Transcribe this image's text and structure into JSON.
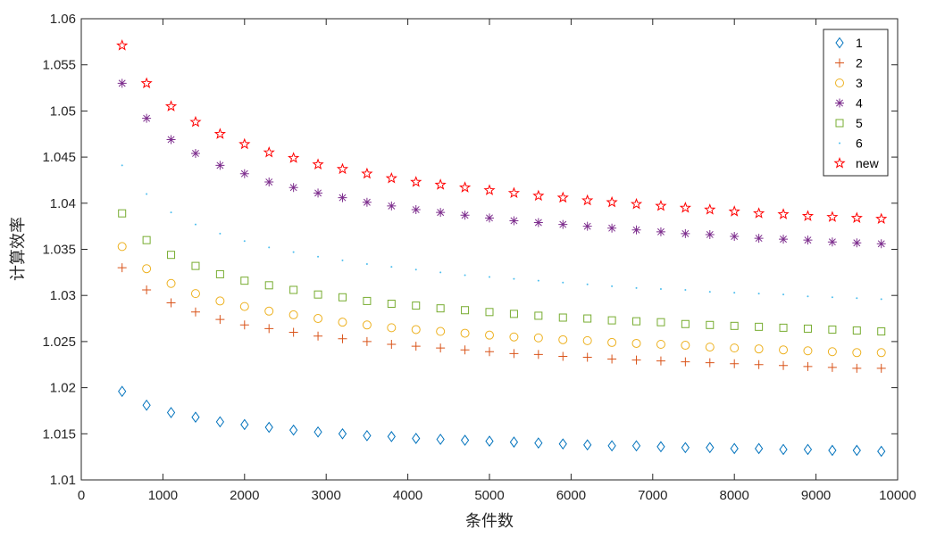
{
  "chart_data": {
    "type": "scatter",
    "title": "",
    "xlabel": "条件数",
    "ylabel": "计算效率",
    "xlim": [
      0,
      10000
    ],
    "ylim": [
      1.01,
      1.06
    ],
    "x_ticks": [
      "0",
      "1000",
      "2000",
      "3000",
      "4000",
      "5000",
      "6000",
      "7000",
      "8000",
      "9000",
      "10000"
    ],
    "y_ticks": [
      "1.01",
      "1.015",
      "1.02",
      "1.025",
      "1.03",
      "1.035",
      "1.04",
      "1.045",
      "1.05",
      "1.055",
      "1.06"
    ],
    "grid": false,
    "legend_position": "top-right",
    "x": [
      500,
      800,
      1100,
      1400,
      1700,
      2000,
      2300,
      2600,
      2900,
      3200,
      3500,
      3800,
      4100,
      4400,
      4700,
      5000,
      5300,
      5600,
      5900,
      6200,
      6500,
      6800,
      7100,
      7400,
      7700,
      8000,
      8300,
      8600,
      8900,
      9200,
      9500,
      9800
    ],
    "series": [
      {
        "name": "1",
        "marker": "diamond",
        "color": "#0072BD",
        "values": [
          1.0196,
          1.0181,
          1.0173,
          1.0168,
          1.0163,
          1.016,
          1.0157,
          1.0154,
          1.0152,
          1.015,
          1.0148,
          1.0147,
          1.0145,
          1.0144,
          1.0143,
          1.0142,
          1.0141,
          1.014,
          1.0139,
          1.0138,
          1.0137,
          1.0137,
          1.0136,
          1.0135,
          1.0135,
          1.0134,
          1.0134,
          1.0133,
          1.0133,
          1.0132,
          1.0132,
          1.0131
        ]
      },
      {
        "name": "2",
        "marker": "plus",
        "color": "#D95319",
        "values": [
          1.033,
          1.0306,
          1.0292,
          1.0282,
          1.0274,
          1.0268,
          1.0264,
          1.026,
          1.0256,
          1.0253,
          1.025,
          1.0247,
          1.0245,
          1.0243,
          1.0241,
          1.0239,
          1.0237,
          1.0236,
          1.0234,
          1.0233,
          1.0231,
          1.023,
          1.0229,
          1.0228,
          1.0227,
          1.0226,
          1.0225,
          1.0224,
          1.0223,
          1.0222,
          1.0221,
          1.0221
        ]
      },
      {
        "name": "3",
        "marker": "circle",
        "color": "#EDB120",
        "values": [
          1.0353,
          1.0329,
          1.0313,
          1.0302,
          1.0294,
          1.0288,
          1.0283,
          1.0279,
          1.0275,
          1.0271,
          1.0268,
          1.0265,
          1.0263,
          1.0261,
          1.0259,
          1.0257,
          1.0255,
          1.0254,
          1.0252,
          1.0251,
          1.0249,
          1.0248,
          1.0247,
          1.0246,
          1.0244,
          1.0243,
          1.0242,
          1.0241,
          1.024,
          1.0239,
          1.0238,
          1.0238
        ]
      },
      {
        "name": "4",
        "marker": "asterisk",
        "color": "#7E2F8E",
        "values": [
          1.053,
          1.0492,
          1.0469,
          1.0454,
          1.0441,
          1.0432,
          1.0423,
          1.0417,
          1.0411,
          1.0406,
          1.0401,
          1.0397,
          1.0393,
          1.039,
          1.0387,
          1.0384,
          1.0381,
          1.0379,
          1.0377,
          1.0375,
          1.0373,
          1.0371,
          1.0369,
          1.0367,
          1.0366,
          1.0364,
          1.0362,
          1.0361,
          1.036,
          1.0358,
          1.0357,
          1.0356
        ]
      },
      {
        "name": "5",
        "marker": "square",
        "color": "#77AC30",
        "values": [
          1.0389,
          1.036,
          1.0344,
          1.0332,
          1.0323,
          1.0316,
          1.0311,
          1.0306,
          1.0301,
          1.0298,
          1.0294,
          1.0291,
          1.0289,
          1.0286,
          1.0284,
          1.0282,
          1.028,
          1.0278,
          1.0276,
          1.0275,
          1.0273,
          1.0272,
          1.0271,
          1.0269,
          1.0268,
          1.0267,
          1.0266,
          1.0265,
          1.0264,
          1.0263,
          1.0262,
          1.0261
        ]
      },
      {
        "name": "6",
        "marker": "point",
        "color": "#4DBEEE",
        "values": [
          1.0441,
          1.041,
          1.039,
          1.0377,
          1.0367,
          1.0359,
          1.0352,
          1.0347,
          1.0342,
          1.0338,
          1.0334,
          1.0331,
          1.0328,
          1.0325,
          1.0322,
          1.032,
          1.0318,
          1.0316,
          1.0314,
          1.0312,
          1.031,
          1.0308,
          1.0307,
          1.0306,
          1.0304,
          1.0303,
          1.0302,
          1.0301,
          1.0299,
          1.0298,
          1.0297,
          1.0296
        ]
      },
      {
        "name": "new",
        "marker": "pentagram",
        "color": "#FF0000",
        "values": [
          1.0571,
          1.053,
          1.0505,
          1.0488,
          1.0475,
          1.0464,
          1.0455,
          1.0449,
          1.0442,
          1.0437,
          1.0432,
          1.0427,
          1.0423,
          1.042,
          1.0417,
          1.0414,
          1.0411,
          1.0408,
          1.0406,
          1.0403,
          1.0401,
          1.0399,
          1.0397,
          1.0395,
          1.0393,
          1.0391,
          1.0389,
          1.0388,
          1.0386,
          1.0385,
          1.0384,
          1.0383
        ]
      }
    ]
  }
}
